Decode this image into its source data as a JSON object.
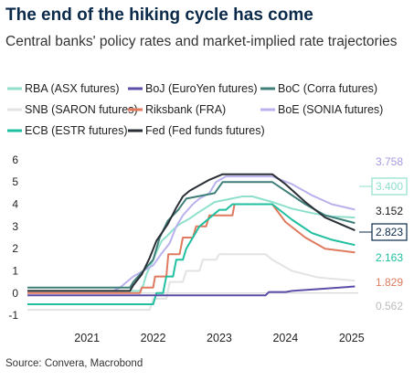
{
  "title": "The end of the hiking cycle has come",
  "subtitle": "Central banks' policy rates and market-implied rate trajectories",
  "source": "Source: Convera, Macrobond",
  "chart_data": {
    "type": "line",
    "y_ticks": [
      -1,
      0,
      1,
      2,
      3,
      4,
      5,
      6
    ],
    "x_ticks": [
      "2021",
      "2022",
      "2023",
      "2024",
      "2025"
    ],
    "ylim": [
      -1.2,
      6.2
    ],
    "grid": false,
    "legend_position": "top",
    "end_labels": [
      {
        "text": "3.758",
        "color": "#a39be0",
        "boxed": false
      },
      {
        "text": "3.400",
        "color": "#8ee0cc",
        "boxed": true
      },
      {
        "text": "3.152",
        "color": "#1a1a1a",
        "boxed": false
      },
      {
        "text": "2.823",
        "color": "#0b2a4a",
        "boxed": true
      },
      {
        "text": "2.163",
        "color": "#1fbf9f",
        "boxed": false
      },
      {
        "text": "1.829",
        "color": "#e07a5f",
        "boxed": false
      },
      {
        "text": "0.562",
        "color": "#bbbbbb",
        "boxed": false
      }
    ],
    "series": [
      {
        "name": "RBA (ASX futures)",
        "color": "#8ee0cc",
        "x": [
          2020.6,
          2022.3,
          2022.35,
          2022.4,
          2022.48,
          2022.55,
          2022.63,
          2022.72,
          2022.8,
          2022.9,
          2023.05,
          2023.17,
          2023.3,
          2023.43,
          2023.85,
          2024.0,
          2024.3,
          2024.6,
          2024.9,
          2025.2,
          2025.55
        ],
        "y": [
          0.1,
          0.1,
          0.35,
          0.85,
          1.35,
          1.85,
          2.35,
          2.6,
          2.85,
          3.1,
          3.35,
          3.6,
          3.85,
          4.1,
          4.35,
          4.35,
          4.1,
          3.8,
          3.6,
          3.45,
          3.4
        ]
      },
      {
        "name": "BoJ (EuroYen futures)",
        "color": "#5b4ea8",
        "x": [
          2020.6,
          2024.2,
          2024.25,
          2024.5,
          2024.6,
          2025.0,
          2025.55
        ],
        "y": [
          -0.1,
          -0.1,
          0.05,
          0.05,
          0.1,
          0.18,
          0.3
        ]
      },
      {
        "name": "BoC (Corra futures)",
        "color": "#3f7f79",
        "x": [
          2020.6,
          2022.15,
          2022.2,
          2022.35,
          2022.5,
          2022.6,
          2022.72,
          2022.88,
          2023.0,
          2023.43,
          2023.55,
          2024.3,
          2024.5,
          2024.8,
          2025.1,
          2025.55
        ],
        "y": [
          0.25,
          0.25,
          0.5,
          1.0,
          1.5,
          2.5,
          3.25,
          3.75,
          4.25,
          4.5,
          5.0,
          5.0,
          4.6,
          4.0,
          3.5,
          3.152
        ]
      },
      {
        "name": "SNB (SARON futures)",
        "color": "#e3e3e3",
        "x": [
          2020.6,
          2022.45,
          2022.5,
          2022.7,
          2022.75,
          2022.95,
          2023.0,
          2023.2,
          2023.25,
          2023.45,
          2023.5,
          2024.2,
          2024.3,
          2024.6,
          2025.0,
          2025.55
        ],
        "y": [
          -0.75,
          -0.75,
          -0.25,
          -0.25,
          0.5,
          0.5,
          1.0,
          1.0,
          1.5,
          1.5,
          1.75,
          1.75,
          1.5,
          1.0,
          0.7,
          0.562
        ]
      },
      {
        "name": "Riksbank (FRA)",
        "color": "#e07a5f",
        "x": [
          2020.6,
          2022.3,
          2022.33,
          2022.5,
          2022.53,
          2022.7,
          2022.73,
          2022.9,
          2022.95,
          2023.1,
          2023.15,
          2023.3,
          2023.35,
          2023.7,
          2023.73,
          2024.3,
          2024.5,
          2024.8,
          2025.1,
          2025.55
        ],
        "y": [
          0.0,
          0.0,
          0.25,
          0.25,
          0.75,
          0.75,
          1.75,
          1.75,
          2.5,
          2.5,
          3.0,
          3.0,
          3.5,
          3.5,
          4.0,
          4.0,
          3.2,
          2.5,
          2.0,
          1.829
        ]
      },
      {
        "name": "BoE (SONIA futures)",
        "color": "#b9b2ec",
        "x": [
          2020.6,
          2021.9,
          2022.0,
          2022.1,
          2022.2,
          2022.35,
          2022.5,
          2022.62,
          2022.75,
          2022.85,
          2022.95,
          2023.1,
          2023.2,
          2023.35,
          2023.45,
          2023.6,
          2024.3,
          2024.6,
          2024.9,
          2025.2,
          2025.55
        ],
        "y": [
          0.1,
          0.1,
          0.25,
          0.5,
          0.75,
          1.0,
          1.25,
          1.75,
          2.25,
          3.0,
          3.5,
          4.0,
          4.25,
          4.5,
          5.0,
          5.25,
          5.25,
          4.9,
          4.4,
          4.0,
          3.758
        ]
      },
      {
        "name": "ECB (ESTR futures)",
        "color": "#1fbf9f",
        "x": [
          2020.6,
          2022.5,
          2022.55,
          2022.65,
          2022.7,
          2022.8,
          2022.85,
          2022.95,
          2023.0,
          2023.1,
          2023.2,
          2023.3,
          2023.4,
          2023.5,
          2023.6,
          2023.7,
          2024.3,
          2024.6,
          2024.9,
          2025.2,
          2025.55
        ],
        "y": [
          -0.5,
          -0.5,
          0.0,
          0.0,
          0.75,
          0.75,
          1.5,
          1.5,
          2.0,
          2.5,
          3.0,
          3.25,
          3.5,
          3.75,
          3.75,
          4.0,
          4.0,
          3.3,
          2.7,
          2.4,
          2.163
        ]
      },
      {
        "name": "Fed (Fed funds futures)",
        "color": "#2a2f36",
        "x": [
          2020.6,
          2022.15,
          2022.2,
          2022.33,
          2022.45,
          2022.55,
          2022.72,
          2022.85,
          2022.95,
          2023.05,
          2023.2,
          2023.35,
          2023.55,
          2024.3,
          2024.5,
          2024.8,
          2025.1,
          2025.55
        ],
        "y": [
          0.1,
          0.1,
          0.35,
          0.85,
          1.6,
          2.35,
          3.1,
          3.85,
          4.35,
          4.6,
          4.85,
          5.1,
          5.35,
          5.35,
          4.9,
          4.1,
          3.4,
          2.823
        ]
      }
    ]
  }
}
